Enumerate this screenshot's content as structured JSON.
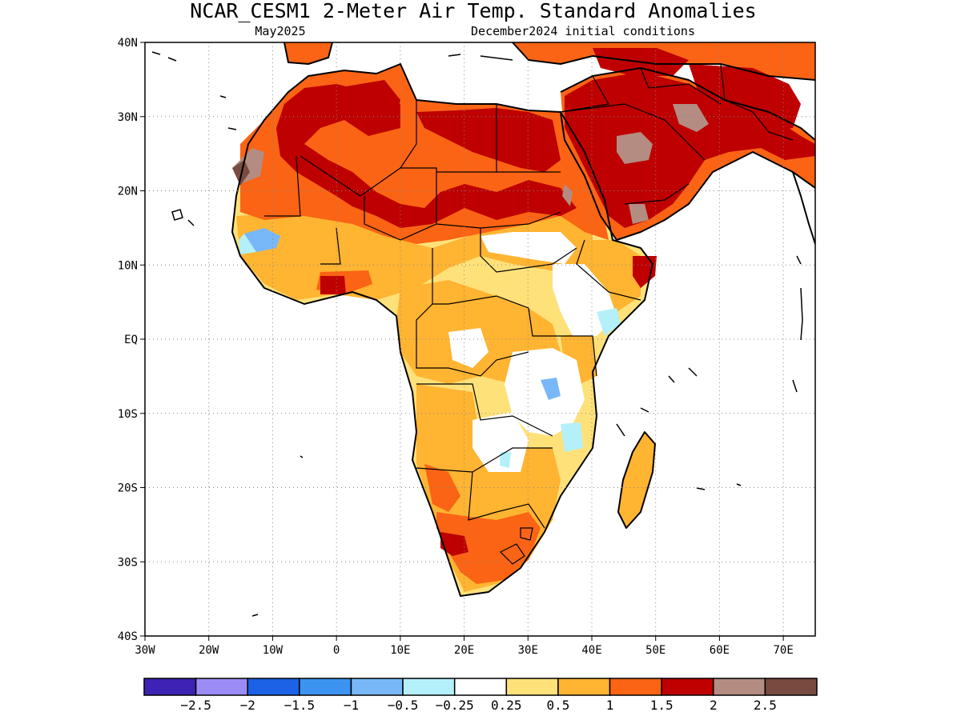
{
  "title": "NCAR_CESM1 2-Meter Air Temp. Standard Anomalies",
  "subtitle_left": "May2025",
  "subtitle_right": "December2024 initial conditions",
  "lat_labels": [
    "40N",
    "30N",
    "20N",
    "10N",
    "EQ",
    "10S",
    "20S",
    "30S",
    "40S"
  ],
  "lon_labels": [
    "30W",
    "20W",
    "10W",
    "0",
    "10E",
    "20E",
    "30E",
    "40E",
    "50E",
    "60E",
    "70E"
  ],
  "colorbar": {
    "colors": [
      "#3e22b4",
      "#9b8cf5",
      "#1b62e6",
      "#3c94f0",
      "#78b8f8",
      "#b4f0fa",
      "#ffffff",
      "#ffe17a",
      "#ffb432",
      "#fa6414",
      "#be0000",
      "#b48c82",
      "#784b41"
    ],
    "labels": [
      "-2.5",
      "-2",
      "-1.5",
      "-1",
      "-0.5",
      "-0.25",
      "0.25",
      "0.5",
      "1",
      "1.5",
      "2",
      "2.5"
    ]
  },
  "map_region": {
    "lon_min": -30,
    "lon_max": 75,
    "lat_min": -40,
    "lat_max": 40
  }
}
